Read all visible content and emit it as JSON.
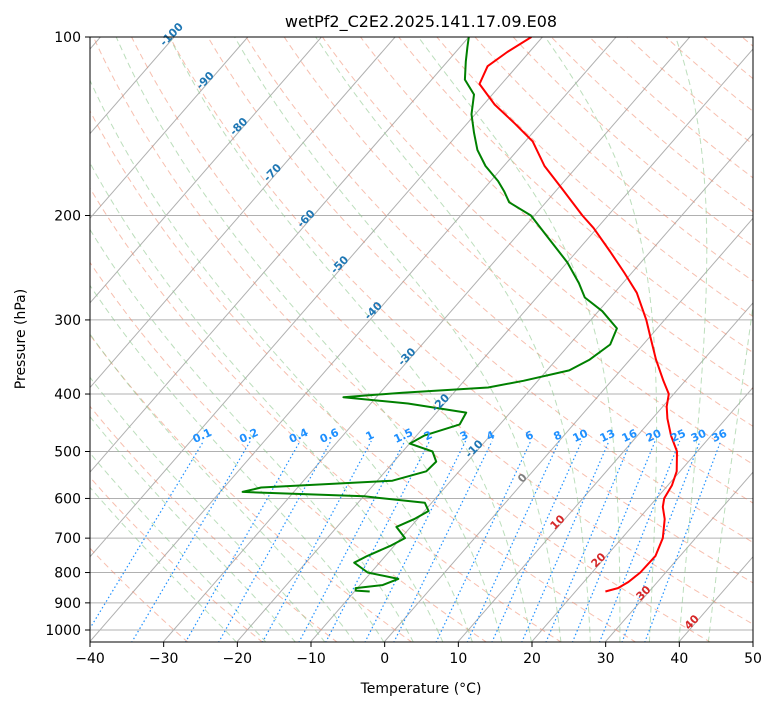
{
  "chart_data": {
    "type": "line",
    "title": "wetPf2_C2E2.2025.141.17.09.E08",
    "xlabel": "Temperature (°C)",
    "ylabel": "Pressure (hPa)",
    "xlim": [
      -40,
      50
    ],
    "ylim": [
      1050,
      100
    ],
    "y_scale": "log",
    "grid": true,
    "x_ticks": [
      "−40",
      "−30",
      "−20",
      "−10",
      "0",
      "10",
      "20",
      "30",
      "40",
      "50"
    ],
    "y_ticks": [
      "100",
      "200",
      "300",
      "400",
      "500",
      "600",
      "700",
      "800",
      "900",
      "1000"
    ],
    "y_tick_values": [
      100,
      200,
      300,
      400,
      500,
      600,
      700,
      800,
      900,
      1000
    ],
    "colors": {
      "temperature": "#ff0000",
      "dewpoint": "#008000",
      "isotherm_labels": "#1f77b4",
      "mixing_ratio": "#1e90ff",
      "dry_adiabat": "#f08060",
      "moist_adiabat": "#90c890"
    },
    "series": [
      {
        "key": "temperature",
        "color": "#ff0000",
        "points": [
          {
            "p": 861,
            "t": 24.0
          },
          {
            "p": 850,
            "t": 25.3
          },
          {
            "p": 830,
            "t": 26.0
          },
          {
            "p": 800,
            "t": 26.5
          },
          {
            "p": 750,
            "t": 26.6
          },
          {
            "p": 700,
            "t": 25.5
          },
          {
            "p": 650,
            "t": 23.5
          },
          {
            "p": 620,
            "t": 21.8
          },
          {
            "p": 600,
            "t": 21.0
          },
          {
            "p": 570,
            "t": 20.5
          },
          {
            "p": 540,
            "t": 19.5
          },
          {
            "p": 500,
            "t": 17.2
          },
          {
            "p": 470,
            "t": 14.5
          },
          {
            "p": 440,
            "t": 12.0
          },
          {
            "p": 420,
            "t": 10.5
          },
          {
            "p": 400,
            "t": 9.3
          },
          {
            "p": 380,
            "t": 7.0
          },
          {
            "p": 350,
            "t": 3.5
          },
          {
            "p": 320,
            "t": 0.0
          },
          {
            "p": 300,
            "t": -2.5
          },
          {
            "p": 270,
            "t": -7.0
          },
          {
            "p": 250,
            "t": -11.0
          },
          {
            "p": 230,
            "t": -15.5
          },
          {
            "p": 210,
            "t": -20.5
          },
          {
            "p": 200,
            "t": -23.5
          },
          {
            "p": 180,
            "t": -29.5
          },
          {
            "p": 165,
            "t": -34.5
          },
          {
            "p": 150,
            "t": -39.0
          },
          {
            "p": 140,
            "t": -43.5
          },
          {
            "p": 130,
            "t": -48.5
          },
          {
            "p": 120,
            "t": -53.0
          },
          {
            "p": 112,
            "t": -54.0
          },
          {
            "p": 106,
            "t": -53.0
          },
          {
            "p": 100,
            "t": -51.5
          }
        ]
      },
      {
        "key": "dewpoint",
        "color": "#008000",
        "points": [
          {
            "p": 861,
            "t": -8.0
          },
          {
            "p": 858,
            "t": -10.0
          },
          {
            "p": 850,
            "t": -10.3
          },
          {
            "p": 840,
            "t": -7.0
          },
          {
            "p": 820,
            "t": -5.6
          },
          {
            "p": 800,
            "t": -10.5
          },
          {
            "p": 770,
            "t": -13.5
          },
          {
            "p": 750,
            "t": -12.5
          },
          {
            "p": 720,
            "t": -10.5
          },
          {
            "p": 700,
            "t": -9.5
          },
          {
            "p": 670,
            "t": -12.0
          },
          {
            "p": 650,
            "t": -10.5
          },
          {
            "p": 630,
            "t": -9.5
          },
          {
            "p": 610,
            "t": -11.0
          },
          {
            "p": 595,
            "t": -20.0
          },
          {
            "p": 585,
            "t": -37.0
          },
          {
            "p": 575,
            "t": -35.0
          },
          {
            "p": 560,
            "t": -18.0
          },
          {
            "p": 540,
            "t": -14.5
          },
          {
            "p": 520,
            "t": -14.3
          },
          {
            "p": 500,
            "t": -16.0
          },
          {
            "p": 485,
            "t": -20.0
          },
          {
            "p": 470,
            "t": -19.0
          },
          {
            "p": 450,
            "t": -15.5
          },
          {
            "p": 430,
            "t": -16.0
          },
          {
            "p": 415,
            "t": -25.0
          },
          {
            "p": 405,
            "t": -34.5
          },
          {
            "p": 398,
            "t": -27.0
          },
          {
            "p": 390,
            "t": -16.0
          },
          {
            "p": 380,
            "t": -12.0
          },
          {
            "p": 365,
            "t": -7.0
          },
          {
            "p": 350,
            "t": -5.5
          },
          {
            "p": 330,
            "t": -4.5
          },
          {
            "p": 310,
            "t": -5.5
          },
          {
            "p": 290,
            "t": -9.5
          },
          {
            "p": 275,
            "t": -13.5
          },
          {
            "p": 260,
            "t": -16.0
          },
          {
            "p": 240,
            "t": -20.0
          },
          {
            "p": 220,
            "t": -25.0
          },
          {
            "p": 200,
            "t": -30.5
          },
          {
            "p": 190,
            "t": -35.0
          },
          {
            "p": 182,
            "t": -37.0
          },
          {
            "p": 175,
            "t": -39.0
          },
          {
            "p": 165,
            "t": -42.5
          },
          {
            "p": 155,
            "t": -45.5
          },
          {
            "p": 145,
            "t": -48.0
          },
          {
            "p": 135,
            "t": -50.5
          },
          {
            "p": 125,
            "t": -52.5
          },
          {
            "p": 118,
            "t": -55.5
          },
          {
            "p": 110,
            "t": -57.5
          },
          {
            "p": 104,
            "t": -59.0
          },
          {
            "p": 100,
            "t": -60.0
          }
        ]
      }
    ],
    "isotherm_labels": [
      "-100",
      "-90",
      "-80",
      "-70",
      "-60",
      "-50",
      "-40",
      "-30",
      "-20",
      "-10",
      "0",
      "10",
      "20",
      "30",
      "40"
    ],
    "mixing_ratio_labels": [
      "0.1",
      "0.2",
      "0.4",
      "0.6",
      "1",
      "1.5",
      "2",
      "3",
      "4",
      "6",
      "8",
      "10",
      "13",
      "16",
      "20",
      "25",
      "30",
      "36"
    ]
  }
}
